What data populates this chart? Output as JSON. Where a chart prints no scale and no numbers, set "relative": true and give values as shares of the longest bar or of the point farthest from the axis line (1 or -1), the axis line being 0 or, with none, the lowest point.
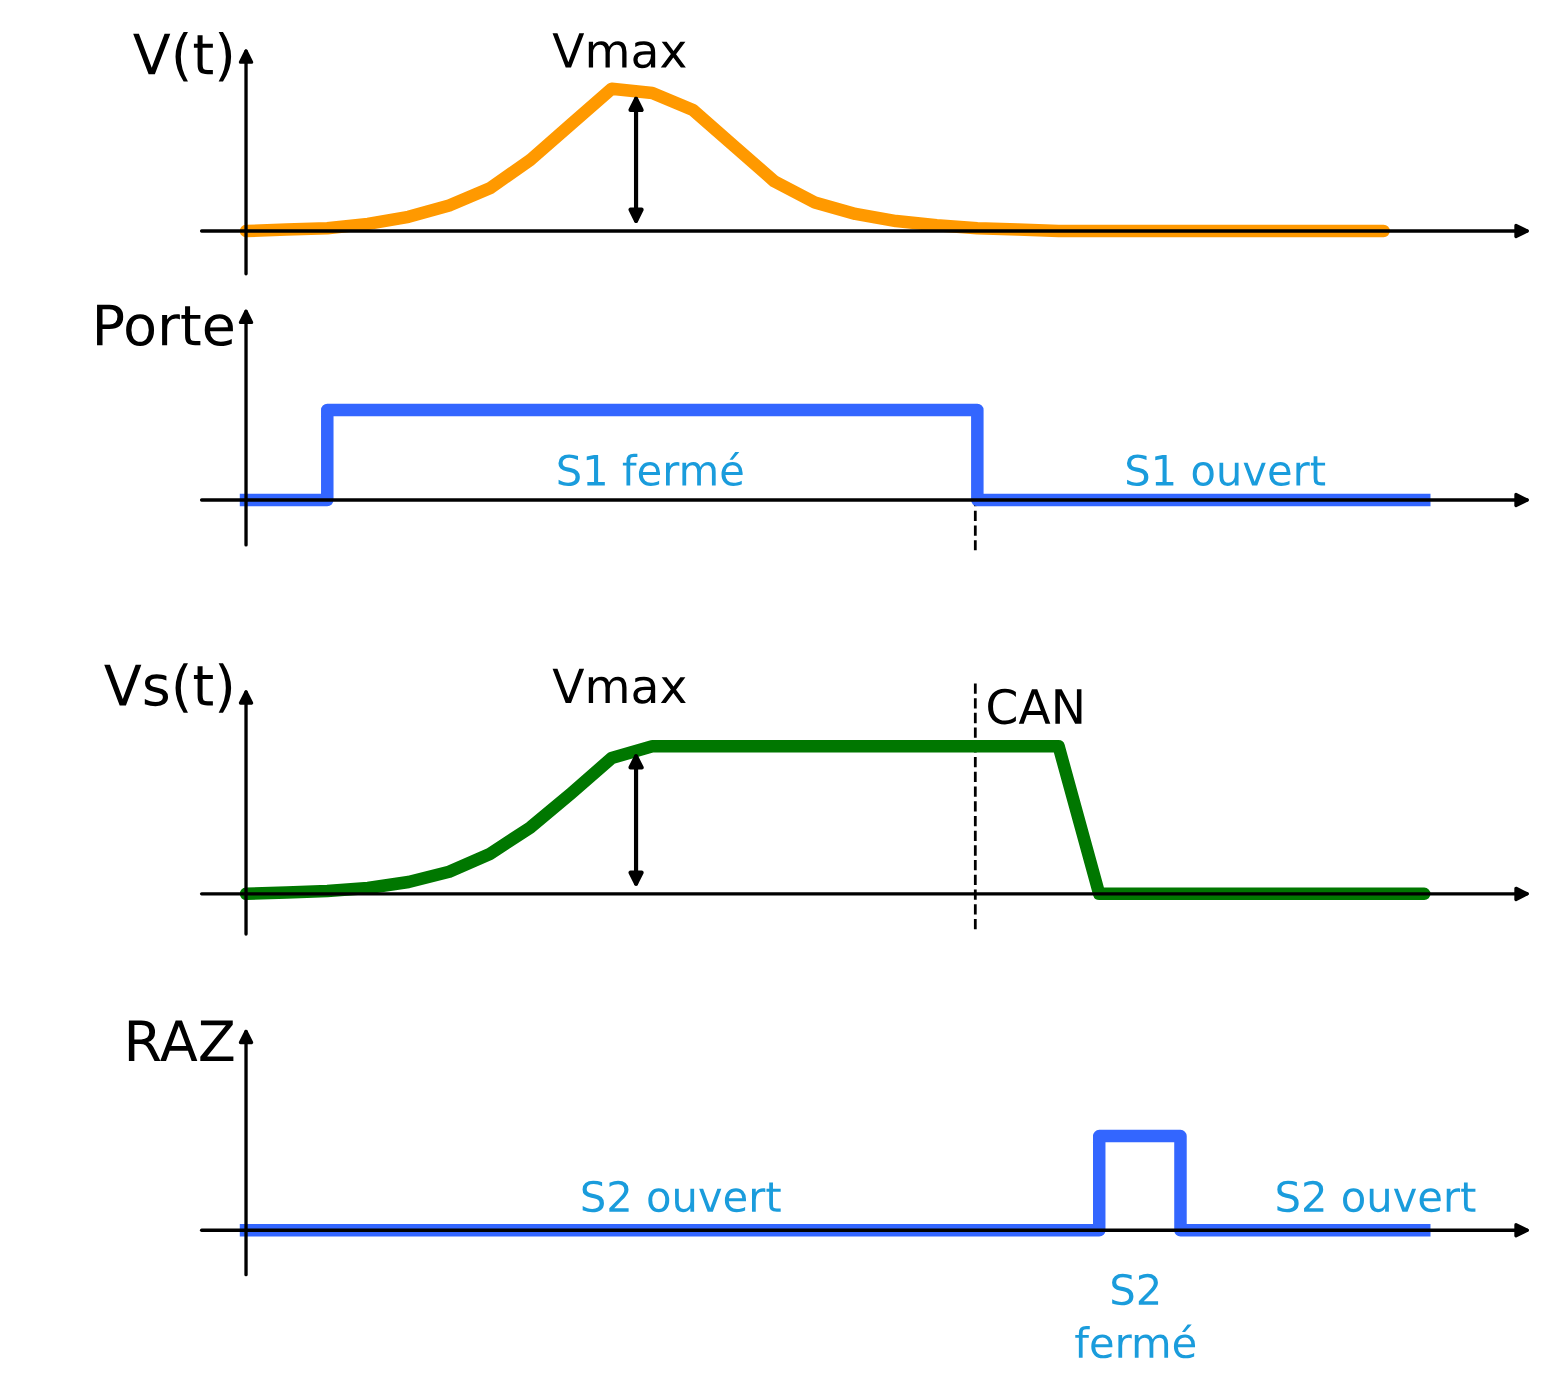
{
  "chart_data": [
    {
      "type": "line",
      "relative": true,
      "ylabel": "V(t)",
      "annotations": [
        "Vmax"
      ],
      "categories": [
        null,
        null,
        null,
        null,
        null,
        null,
        null,
        null,
        null,
        null,
        null,
        null,
        null,
        null,
        null,
        null,
        null,
        null,
        null,
        null,
        null,
        null,
        null,
        null,
        null,
        null,
        null,
        null,
        null,
        null
      ],
      "series": [
        {
          "color": "#ff9900",
          "values": [
            0,
            0.01,
            0.02,
            0.05,
            0.1,
            0.18,
            0.3,
            0.5,
            0.75,
            1,
            0.97,
            0.85,
            0.6,
            0.35,
            0.2,
            0.12,
            0.07,
            0.04,
            0.02,
            0.01,
            0,
            0,
            0,
            0,
            0,
            0,
            0,
            0,
            0,
            null
          ]
        }
      ]
    },
    {
      "type": "step",
      "relative": true,
      "ylabel": "Porte",
      "annotations": [
        "S1 fermé",
        "S1 ouvert"
      ],
      "categories": [
        null,
        null,
        null,
        null,
        null,
        null,
        null,
        null,
        null,
        null,
        null,
        null,
        null,
        null,
        null,
        null,
        null,
        null,
        null,
        null,
        null,
        null,
        null,
        null,
        null,
        null,
        null,
        null,
        null,
        null
      ],
      "series": [
        {
          "color": "#3366ff",
          "values": [
            0,
            0,
            1,
            1,
            1,
            1,
            1,
            1,
            1,
            1,
            1,
            1,
            1,
            1,
            1,
            1,
            1,
            1,
            0,
            0,
            0,
            0,
            0,
            0,
            0,
            0,
            0,
            0,
            0,
            0
          ]
        }
      ]
    },
    {
      "type": "line",
      "relative": true,
      "ylabel": "Vs(t)",
      "annotations": [
        "Vmax",
        "CAN"
      ],
      "categories": [
        null,
        null,
        null,
        null,
        null,
        null,
        null,
        null,
        null,
        null,
        null,
        null,
        null,
        null,
        null,
        null,
        null,
        null,
        null,
        null,
        null,
        null,
        null,
        null,
        null,
        null,
        null,
        null,
        null,
        null
      ],
      "series": [
        {
          "color": "#007700",
          "values": [
            0,
            0.01,
            0.02,
            0.04,
            0.08,
            0.15,
            0.27,
            0.45,
            0.68,
            0.92,
            1,
            1,
            1,
            1,
            1,
            1,
            1,
            1,
            1,
            1,
            1,
            0,
            0,
            0,
            0,
            0,
            0,
            0,
            0,
            0
          ]
        }
      ]
    },
    {
      "type": "step",
      "relative": true,
      "ylabel": "RAZ",
      "annotations": [
        "S2 ouvert",
        "S2 ouvert",
        "S2\nfermé"
      ],
      "categories": [
        null,
        null,
        null,
        null,
        null,
        null,
        null,
        null,
        null,
        null,
        null,
        null,
        null,
        null,
        null,
        null,
        null,
        null,
        null,
        null,
        null,
        null,
        null,
        null,
        null,
        null,
        null,
        null,
        null,
        null
      ],
      "series": [
        {
          "color": "#3366ff",
          "values": [
            0,
            0,
            0,
            0,
            0,
            0,
            0,
            0,
            0,
            0,
            0,
            0,
            0,
            0,
            0,
            0,
            0,
            0,
            0,
            0,
            0,
            1,
            1,
            0,
            0,
            0,
            0,
            0,
            0,
            0
          ]
        }
      ]
    }
  ]
}
